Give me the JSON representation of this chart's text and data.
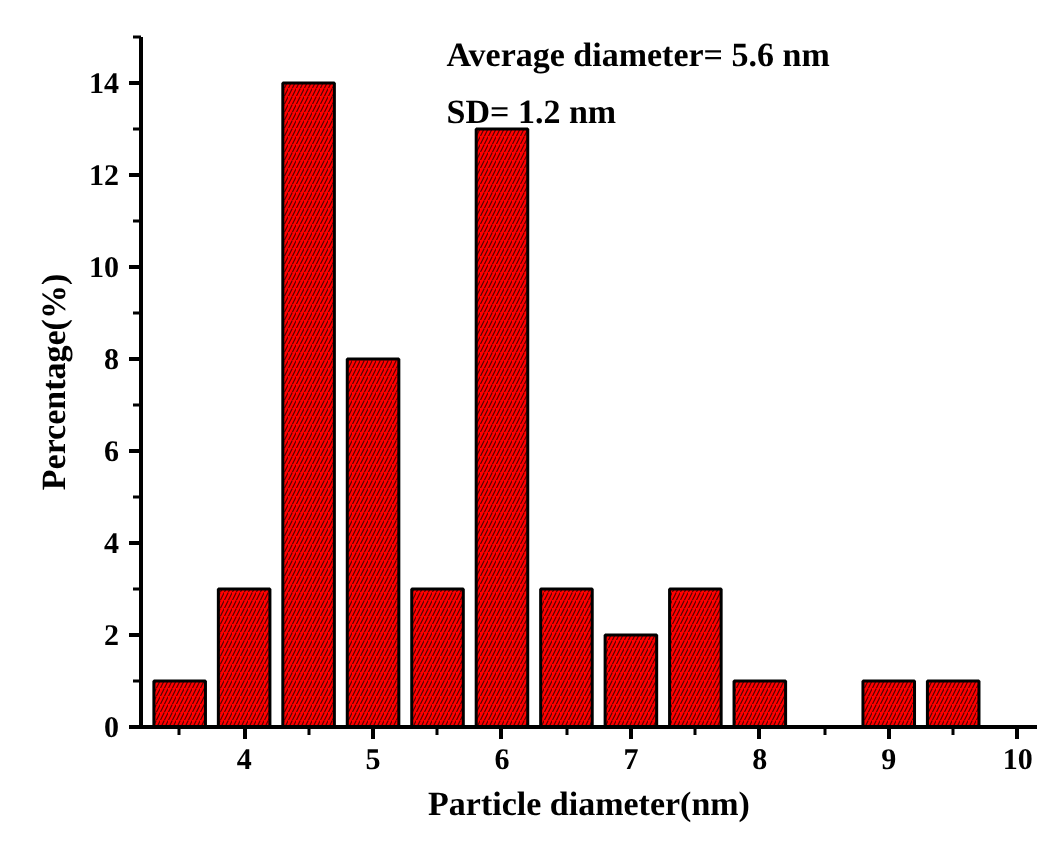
{
  "chart_data": {
    "type": "bar",
    "xlabel": "Particle diameter(nm)",
    "ylabel": "Percentage(%)",
    "x": [
      3.5,
      4,
      4.5,
      5,
      5.5,
      6,
      6.5,
      7,
      7.5,
      8,
      9,
      9.5
    ],
    "values": [
      1,
      3,
      14,
      8,
      3,
      13,
      3,
      2,
      3,
      1,
      1,
      1
    ],
    "color": "#ff0000",
    "xlim": [
      3.2,
      10.15
    ],
    "xticks": [
      4,
      5,
      6,
      7,
      8,
      9,
      10
    ],
    "ylim": [
      0,
      15
    ],
    "yticks": [
      0,
      2,
      4,
      6,
      8,
      10,
      12,
      14
    ],
    "grid": false,
    "annotations": [
      "Average diameter= 5.6 nm",
      "SD= 1.2 nm"
    ]
  }
}
